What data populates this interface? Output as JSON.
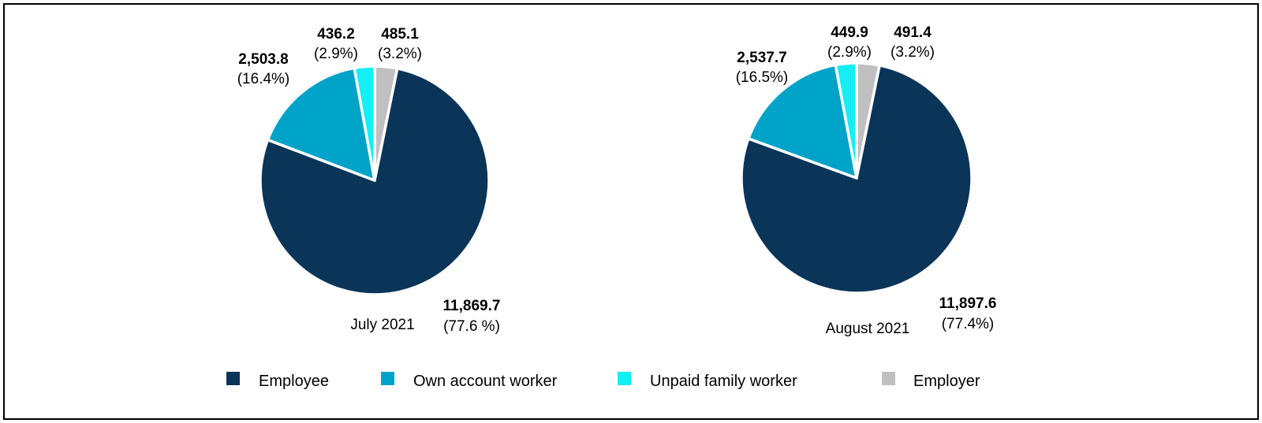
{
  "chart_data": [
    {
      "type": "pie",
      "caption": "July 2021",
      "categories": [
        "Employee",
        "Own account worker",
        "Unpaid family worker",
        "Employer"
      ],
      "values": [
        11869.7,
        2503.8,
        436.2,
        485.1
      ],
      "value_labels": [
        "11,869.7",
        "2,503.8",
        "436.2",
        "485.1"
      ],
      "pct_labels": [
        "(77.6 %)",
        "(16.4%)",
        "(2.9%)",
        "(3.2%)"
      ]
    },
    {
      "type": "pie",
      "caption": "August 2021",
      "categories": [
        "Employee",
        "Own account worker",
        "Unpaid family worker",
        "Employer"
      ],
      "values": [
        11897.6,
        2537.7,
        449.9,
        491.4
      ],
      "value_labels": [
        "11,897.6",
        "2,537.7",
        "449.9",
        "491.4"
      ],
      "pct_labels": [
        "(77.4%)",
        "(16.5%)",
        "(2.9%)",
        "(3.2%)"
      ]
    }
  ],
  "legend": {
    "placement": "bottom",
    "items": [
      {
        "label": "Employee",
        "color": "#0b3558"
      },
      {
        "label": "Own account worker",
        "color": "#00a3c8"
      },
      {
        "label": "Unpaid family worker",
        "color": "#14eef5"
      },
      {
        "label": "Employer",
        "color": "#c0c0c0"
      }
    ]
  }
}
